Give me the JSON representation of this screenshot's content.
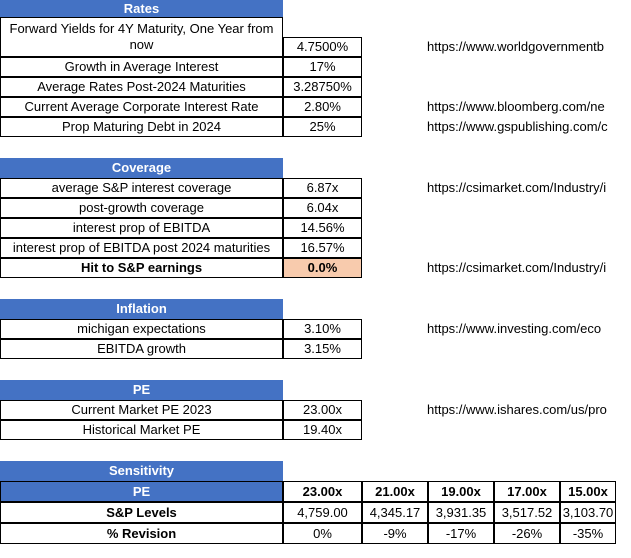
{
  "rates": {
    "header": "Rates",
    "rows": [
      {
        "label_line1": "Forward Yields for 4Y Maturity, One Year from",
        "label_line2": "now",
        "value": "4.7500%",
        "url": "https://www.worldgovernmentb"
      },
      {
        "label": "Growth in Average Interest",
        "value": "17%",
        "url": ""
      },
      {
        "label": "Average Rates Post-2024 Maturities",
        "value": "3.28750%",
        "url": ""
      },
      {
        "label": "Current Average Corporate Interest Rate",
        "value": "2.80%",
        "url": "https://www.bloomberg.com/ne"
      },
      {
        "label": "Prop Maturing Debt in 2024",
        "value": "25%",
        "url": "https://www.gspublishing.com/c"
      }
    ]
  },
  "coverage": {
    "header": "Coverage",
    "rows": [
      {
        "label": "average S&P interest coverage",
        "value": "6.87x",
        "url": "https://csimarket.com/Industry/i"
      },
      {
        "label": "post-growth coverage",
        "value": "6.04x",
        "url": ""
      },
      {
        "label": "interest prop of EBITDA",
        "value": "14.56%",
        "url": ""
      },
      {
        "label": "interest prop of EBITDA post 2024 maturities",
        "value": "16.57%",
        "url": ""
      },
      {
        "label": "Hit to S&P earnings",
        "value": "0.0%",
        "url": "https://csimarket.com/Industry/i"
      }
    ]
  },
  "inflation": {
    "header": "Inflation",
    "rows": [
      {
        "label": "michigan expectations",
        "value": "3.10%",
        "url": "https://www.investing.com/eco"
      },
      {
        "label": "EBITDA growth",
        "value": "3.15%",
        "url": ""
      }
    ]
  },
  "pe": {
    "header": "PE",
    "rows": [
      {
        "label": "Current Market PE 2023",
        "value": "23.00x",
        "url": "https://www.ishares.com/us/pro"
      },
      {
        "label": "Historical Market PE",
        "value": "19.40x",
        "url": ""
      }
    ]
  },
  "sensitivity": {
    "header": "Sensitivity",
    "row_pe_label": "PE",
    "row_levels_label": "S&P Levels",
    "row_revision_label": "% Revision",
    "pe_values": [
      "23.00x",
      "21.00x",
      "19.00x",
      "17.00x",
      "15.00x"
    ],
    "levels": [
      "4,759.00",
      "4,345.17",
      "3,931.35",
      "3,517.52",
      "3,103.70"
    ],
    "revisions": [
      "0%",
      "-9%",
      "-17%",
      "-26%",
      "-35%"
    ]
  },
  "colors": {
    "header_blue": "#4472c4",
    "highlight_orange": "#f8cbad"
  }
}
